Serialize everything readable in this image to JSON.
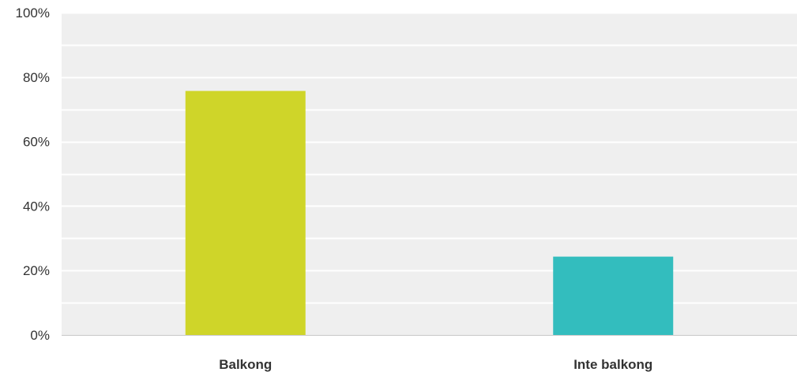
{
  "chart_data": {
    "type": "bar",
    "categories": [
      "Balkong",
      "Inte balkong"
    ],
    "values": [
      75.7,
      24.3
    ],
    "colors": [
      "#cfd529",
      "#33bdbe"
    ],
    "ylim": [
      0,
      100
    ],
    "yticks": [
      0,
      20,
      40,
      60,
      80,
      100
    ],
    "ytick_labels": [
      "0%",
      "20%",
      "40%",
      "60%",
      "80%",
      "100%"
    ],
    "grid": true,
    "plot_background": "#efefef",
    "grid_color": "#ffffff",
    "title": "",
    "xlabel": "",
    "ylabel": ""
  }
}
